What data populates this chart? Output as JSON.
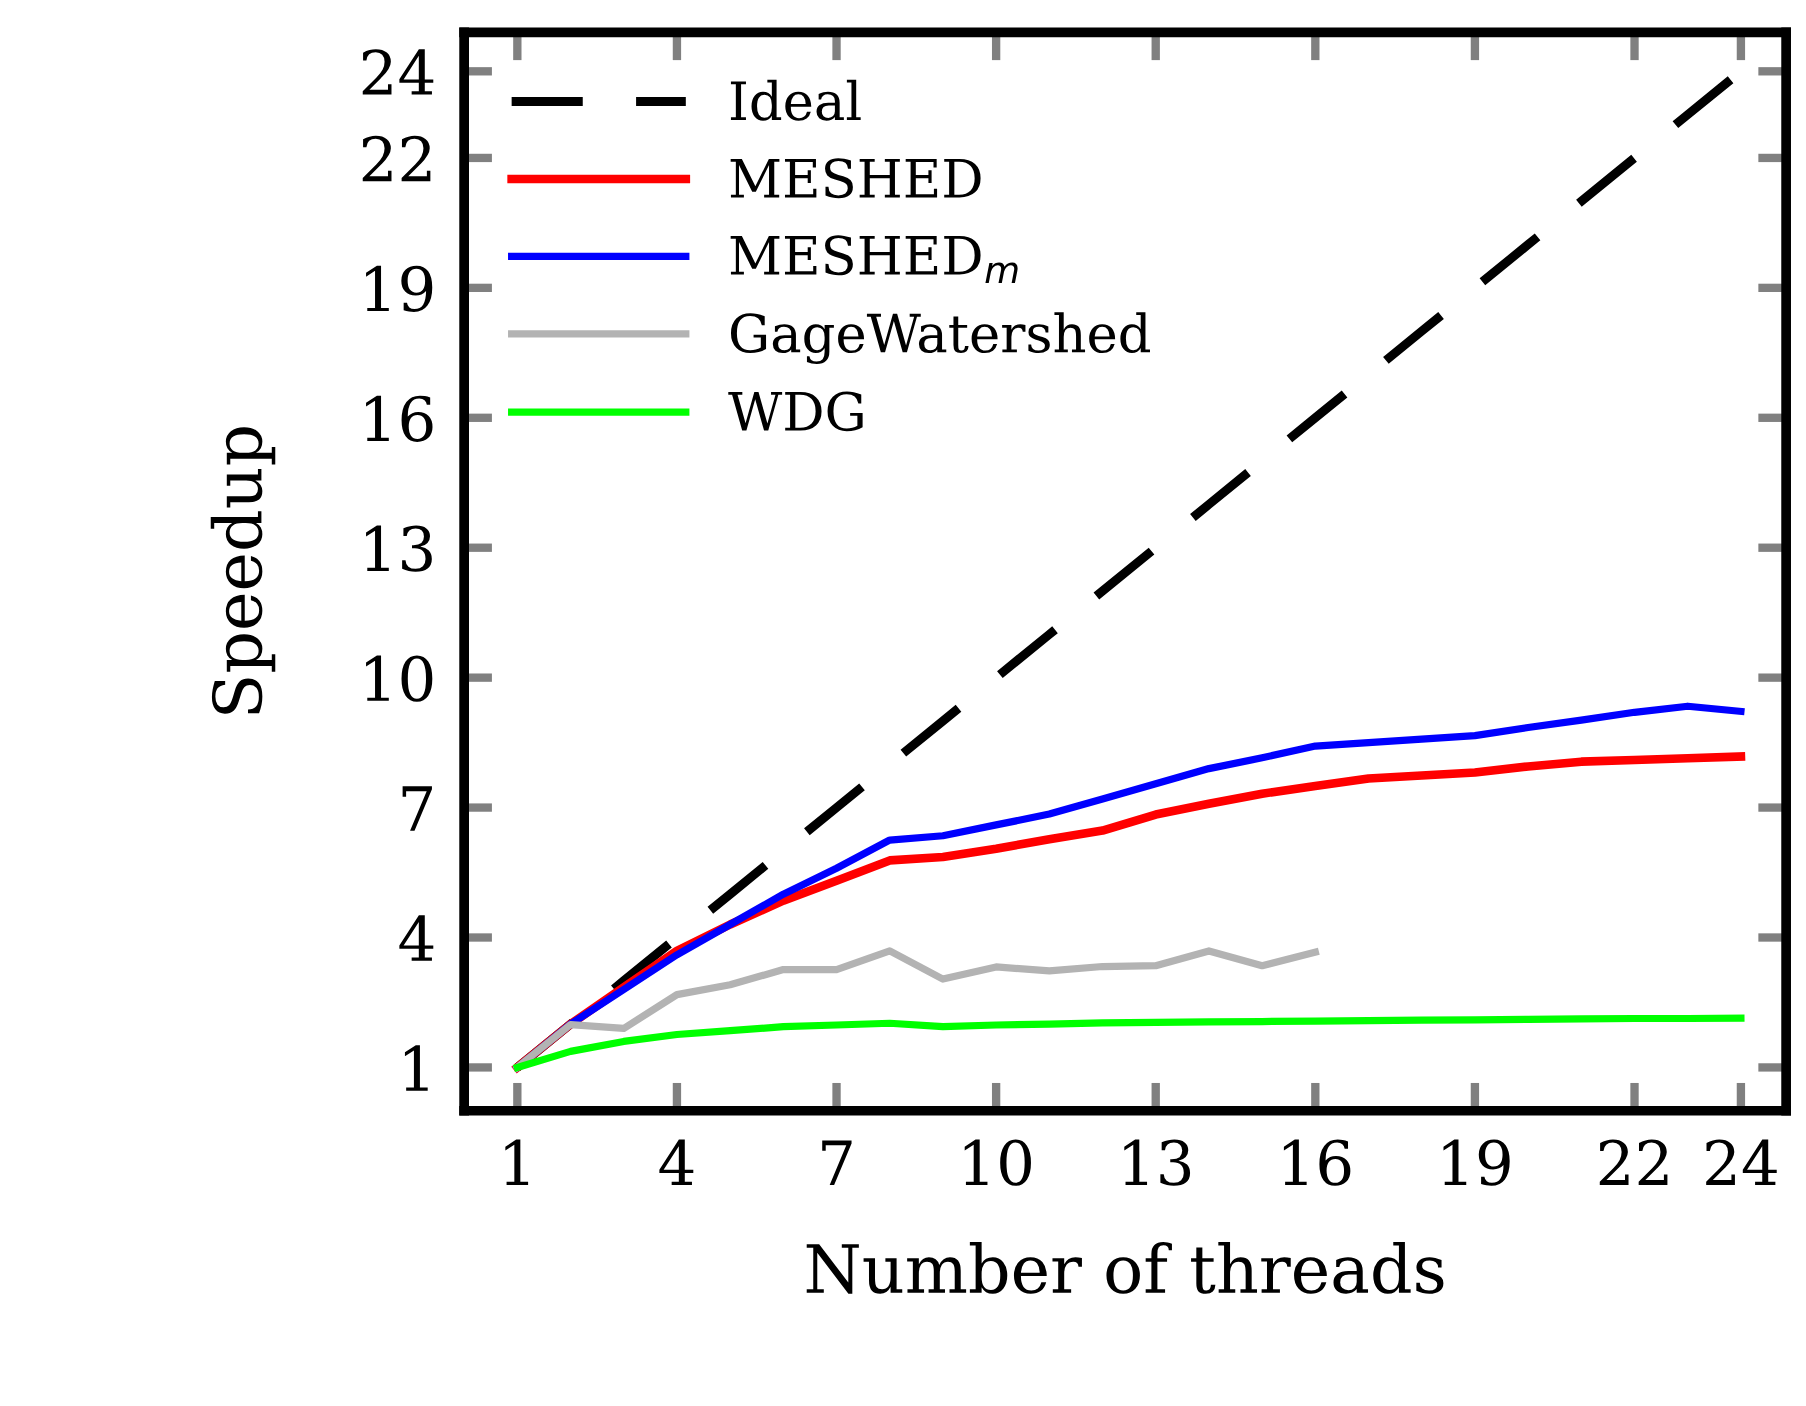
{
  "chart_data": {
    "type": "line",
    "xlabel": "Number of threads",
    "ylabel": "Speedup",
    "x": [
      1,
      2,
      3,
      4,
      5,
      6,
      7,
      8,
      9,
      10,
      11,
      12,
      13,
      14,
      15,
      16,
      17,
      18,
      19,
      20,
      21,
      22,
      23,
      24
    ],
    "xlim": [
      0,
      24.85
    ],
    "ylim": [
      0,
      24.9
    ],
    "xticks": [
      1,
      4,
      7,
      10,
      13,
      16,
      19,
      22,
      24
    ],
    "yticks": [
      1,
      4,
      7,
      10,
      13,
      16,
      19,
      22,
      24
    ],
    "legend": "top left",
    "grid": false,
    "series": [
      {
        "name": "Ideal",
        "color": "#000000",
        "line_style": "dashed",
        "values": [
          1,
          2,
          3,
          4,
          5,
          6,
          7,
          8,
          9,
          10,
          11,
          12,
          13,
          14,
          15,
          16,
          17,
          18,
          19,
          20,
          21,
          22,
          23,
          24
        ]
      },
      {
        "name": "MESHED",
        "color": "#ff0000",
        "values": [
          1,
          2.0,
          2.85,
          3.69,
          4.3,
          4.85,
          5.31,
          5.78,
          5.86,
          6.05,
          6.27,
          6.47,
          6.84,
          7.09,
          7.32,
          7.5,
          7.67,
          7.74,
          7.81,
          7.95,
          8.06,
          8.1,
          8.14,
          8.18
        ]
      },
      {
        "name": "MESHED$_{m}$",
        "color": "#0000ff",
        "values": [
          1,
          2.0,
          2.8,
          3.6,
          4.3,
          5.0,
          5.6,
          6.25,
          6.35,
          6.6,
          6.85,
          7.2,
          7.55,
          7.9,
          8.15,
          8.42,
          8.5,
          8.58,
          8.66,
          8.85,
          9.02,
          9.2,
          9.34,
          9.22
        ]
      },
      {
        "name": "GageWatershed",
        "color": "#b3b3b3",
        "x": [
          1,
          2,
          3,
          4,
          5,
          6,
          7,
          8,
          9,
          10,
          11,
          12,
          13,
          14,
          15,
          16
        ],
        "values": [
          1,
          1.99,
          1.9,
          2.68,
          2.91,
          3.26,
          3.26,
          3.69,
          3.04,
          3.32,
          3.23,
          3.33,
          3.35,
          3.69,
          3.35,
          3.66
        ]
      },
      {
        "name": "WDG",
        "color": "#00ff00",
        "values": [
          1,
          1.37,
          1.6,
          1.76,
          1.85,
          1.94,
          1.98,
          2.02,
          1.94,
          1.98,
          2.0,
          2.03,
          2.04,
          2.05,
          2.06,
          2.07,
          2.08,
          2.09,
          2.1,
          2.11,
          2.12,
          2.13,
          2.13,
          2.14
        ]
      }
    ]
  }
}
